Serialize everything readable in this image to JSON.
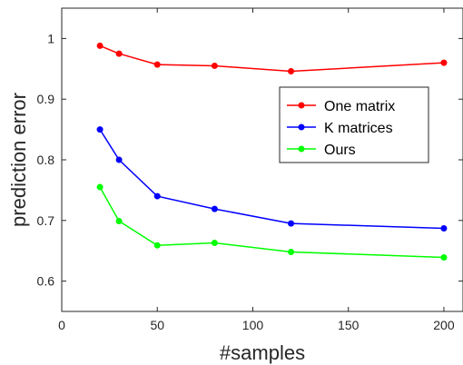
{
  "chart_data": {
    "type": "line",
    "title": "",
    "xlabel": "#samples",
    "ylabel": "prediction error",
    "xlim": [
      0,
      210
    ],
    "ylim": [
      0.55,
      1.05
    ],
    "xticks": [
      0,
      50,
      100,
      150,
      200
    ],
    "xtick_labels": [
      "0",
      "50",
      "100",
      "150",
      "200"
    ],
    "yticks": [
      0.6,
      0.7,
      0.8,
      0.9,
      1.0
    ],
    "ytick_labels": [
      "0.6",
      "0.7",
      "0.8",
      "0.9",
      "1"
    ],
    "grid": false,
    "legend_position": "right",
    "x": [
      20,
      30,
      50,
      80,
      120,
      200
    ],
    "series": [
      {
        "name": "One matrix",
        "color": "#ff0000",
        "values": [
          0.988,
          0.975,
          0.957,
          0.955,
          0.946,
          0.96
        ]
      },
      {
        "name": "K matrices",
        "color": "#0000ff",
        "values": [
          0.85,
          0.8,
          0.74,
          0.719,
          0.695,
          0.687
        ]
      },
      {
        "name": "Ours",
        "color": "#00ff00",
        "values": [
          0.755,
          0.699,
          0.659,
          0.663,
          0.648,
          0.639
        ]
      }
    ]
  }
}
